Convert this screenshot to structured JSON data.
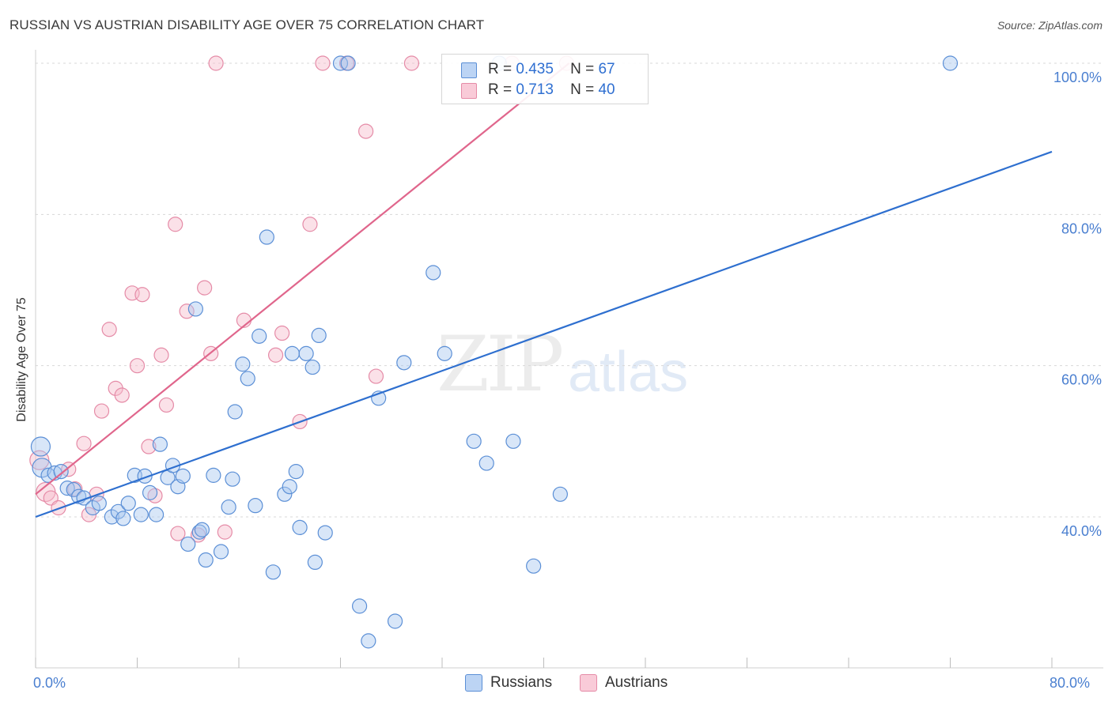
{
  "title": "RUSSIAN VS AUSTRIAN DISABILITY AGE OVER 75 CORRELATION CHART",
  "source": "Source: ZipAtlas.com",
  "watermark": {
    "zip": "ZIP",
    "atlas": "atlas"
  },
  "legend": {
    "russians": {
      "r_label": "R =",
      "r_value": "0.435",
      "n_label": "N =",
      "n_value": "67"
    },
    "austrians": {
      "r_label": "R =",
      "r_value": "0.713",
      "n_label": "N =",
      "n_value": "40"
    }
  },
  "bottom_legend": {
    "russians": "Russians",
    "austrians": "Austrians"
  },
  "colors": {
    "russians_fill": "#a9c8f0",
    "russians_stroke": "#5b8fd6",
    "russians_line": "#2e6fcf",
    "austrians_fill": "#f7bccd",
    "austrians_stroke": "#e58ba7",
    "austrians_line": "#e0668c",
    "tick_text": "#4a7fd0",
    "grid": "#d8d8d8"
  },
  "chart_data": {
    "type": "scatter",
    "title": "RUSSIAN VS AUSTRIAN DISABILITY AGE OVER 75 CORRELATION CHART",
    "xlabel": "",
    "ylabel": "Disability Age Over 75",
    "xlim": [
      0,
      80
    ],
    "ylim": [
      20,
      102
    ],
    "x_tick_labels": [
      {
        "value": 0,
        "label": "0.0%"
      },
      {
        "value": 80,
        "label": "80.0%"
      }
    ],
    "y_tick_labels": [
      {
        "value": 40,
        "label": "40.0%"
      },
      {
        "value": 60,
        "label": "60.0%"
      },
      {
        "value": 80,
        "label": "80.0%"
      },
      {
        "value": 100,
        "label": "100.0%"
      }
    ],
    "grid": true,
    "legend_position": "top-center",
    "series": [
      {
        "name": "Russians",
        "trend": {
          "x": [
            0,
            80
          ],
          "y": [
            40.0,
            88.3
          ]
        },
        "points": [
          [
            0.4,
            49.3
          ],
          [
            0.5,
            46.5
          ],
          [
            1.0,
            45.5
          ],
          [
            1.5,
            45.8
          ],
          [
            2.0,
            46.0
          ],
          [
            2.5,
            43.8
          ],
          [
            3.0,
            43.6
          ],
          [
            3.4,
            42.7
          ],
          [
            3.8,
            42.5
          ],
          [
            4.5,
            41.2
          ],
          [
            5.0,
            41.8
          ],
          [
            6.0,
            40.0
          ],
          [
            6.5,
            40.7
          ],
          [
            7.3,
            41.8
          ],
          [
            7.8,
            45.5
          ],
          [
            8.3,
            40.3
          ],
          [
            8.6,
            45.4
          ],
          [
            9.0,
            43.2
          ],
          [
            9.5,
            40.3
          ],
          [
            9.8,
            49.6
          ],
          [
            10.4,
            45.2
          ],
          [
            10.8,
            46.8
          ],
          [
            11.2,
            44.0
          ],
          [
            11.6,
            45.4
          ],
          [
            12.0,
            36.4
          ],
          [
            12.6,
            67.5
          ],
          [
            12.9,
            38.0
          ],
          [
            13.4,
            34.3
          ],
          [
            14.0,
            45.5
          ],
          [
            14.6,
            35.4
          ],
          [
            15.2,
            41.3
          ],
          [
            15.5,
            45.0
          ],
          [
            15.7,
            53.9
          ],
          [
            16.3,
            60.2
          ],
          [
            16.7,
            58.3
          ],
          [
            17.3,
            41.5
          ],
          [
            17.6,
            63.9
          ],
          [
            18.2,
            77.0
          ],
          [
            18.7,
            32.7
          ],
          [
            19.6,
            43.0
          ],
          [
            20.2,
            61.6
          ],
          [
            20.5,
            46.0
          ],
          [
            20.8,
            38.6
          ],
          [
            21.3,
            61.6
          ],
          [
            21.8,
            59.8
          ],
          [
            22.0,
            34.0
          ],
          [
            22.3,
            64.0
          ],
          [
            22.8,
            37.9
          ],
          [
            24.0,
            100.0
          ],
          [
            24.6,
            100.0
          ],
          [
            25.5,
            28.2
          ],
          [
            26.2,
            23.6
          ],
          [
            27.0,
            55.7
          ],
          [
            28.3,
            26.2
          ],
          [
            29.0,
            60.4
          ],
          [
            31.3,
            72.3
          ],
          [
            32.2,
            61.6
          ],
          [
            34.5,
            50.0
          ],
          [
            35.5,
            47.1
          ],
          [
            36.5,
            100.0
          ],
          [
            37.6,
            50.0
          ],
          [
            39.2,
            33.5
          ],
          [
            41.3,
            43.0
          ],
          [
            72.0,
            100.0
          ],
          [
            6.9,
            39.8
          ],
          [
            13.1,
            38.3
          ],
          [
            20.0,
            44.0
          ]
        ]
      },
      {
        "name": "Austrians",
        "trend": {
          "x": [
            0,
            42
          ],
          "y": [
            43.0,
            100.0
          ]
        },
        "points": [
          [
            0.3,
            47.5
          ],
          [
            0.8,
            43.3
          ],
          [
            1.2,
            42.5
          ],
          [
            1.8,
            41.2
          ],
          [
            2.6,
            46.3
          ],
          [
            3.1,
            43.7
          ],
          [
            3.8,
            49.7
          ],
          [
            4.2,
            40.3
          ],
          [
            4.8,
            43.0
          ],
          [
            5.2,
            54.0
          ],
          [
            5.8,
            64.8
          ],
          [
            6.3,
            57.0
          ],
          [
            6.8,
            56.1
          ],
          [
            7.6,
            69.6
          ],
          [
            8.0,
            60.0
          ],
          [
            8.4,
            69.4
          ],
          [
            8.9,
            49.3
          ],
          [
            9.4,
            42.8
          ],
          [
            9.9,
            61.4
          ],
          [
            10.3,
            54.8
          ],
          [
            11.0,
            78.7
          ],
          [
            11.2,
            37.8
          ],
          [
            11.9,
            67.2
          ],
          [
            12.8,
            37.6
          ],
          [
            13.3,
            70.3
          ],
          [
            13.8,
            61.6
          ],
          [
            14.2,
            100.0
          ],
          [
            14.9,
            38.0
          ],
          [
            16.4,
            66.0
          ],
          [
            18.9,
            61.4
          ],
          [
            19.4,
            64.3
          ],
          [
            20.8,
            52.6
          ],
          [
            21.6,
            78.7
          ],
          [
            22.6,
            100.0
          ],
          [
            24.5,
            100.0
          ],
          [
            26.0,
            91.0
          ],
          [
            26.8,
            58.6
          ],
          [
            29.6,
            100.0
          ],
          [
            37.5,
            100.0
          ],
          [
            41.8,
            100.0
          ]
        ]
      }
    ]
  }
}
